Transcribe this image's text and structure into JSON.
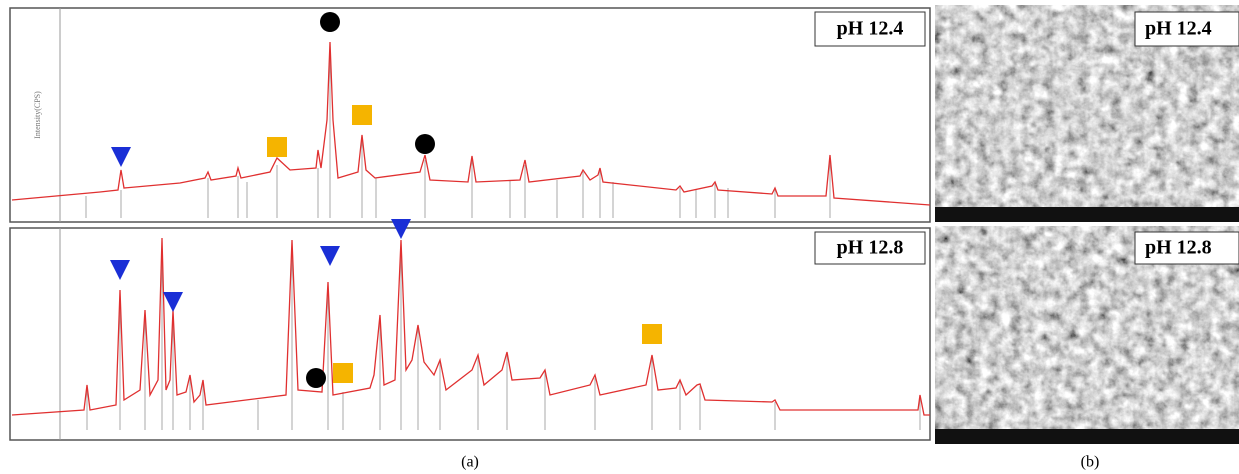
{
  "panels": [
    {
      "label": "(a)",
      "y_label": "Intensity(CPS)",
      "plots": [
        {
          "tag": "pH 12.4"
        },
        {
          "tag": "pH 12.8"
        }
      ]
    },
    {
      "label": "(b)",
      "images": [
        {
          "tag": "pH 12.4"
        },
        {
          "tag": "pH 12.8"
        }
      ]
    }
  ]
}
